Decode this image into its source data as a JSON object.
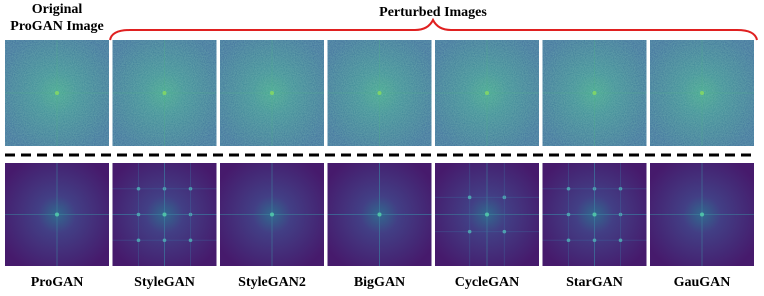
{
  "header": {
    "original_lines": [
      "Original",
      "ProGAN Image"
    ],
    "perturbed": "Perturbed Images"
  },
  "columns": [
    "ProGAN",
    "StyleGAN",
    "StyleGAN2",
    "BigGAN",
    "CycleGAN",
    "StarGAN",
    "GauGAN"
  ]
}
